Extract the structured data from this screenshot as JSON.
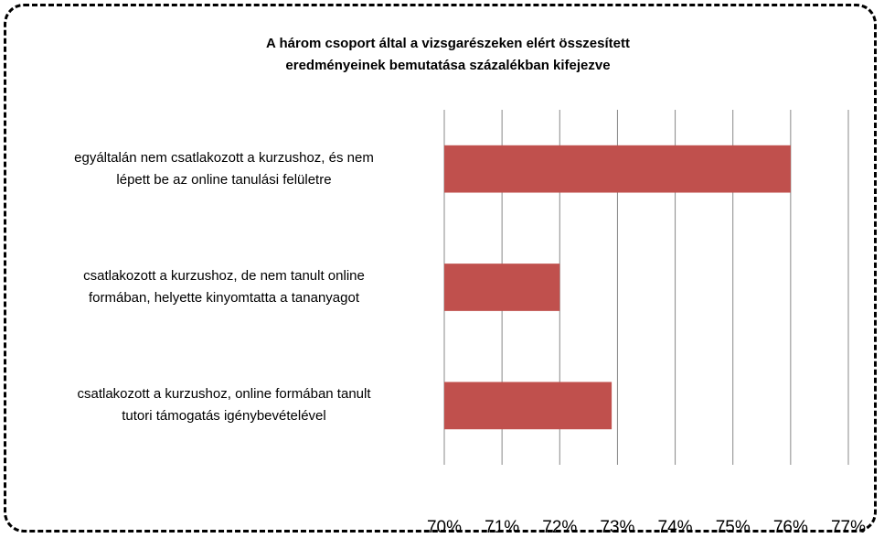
{
  "chart_data": {
    "type": "barh",
    "title": "A három csoport által a vizsgarészeken elért összesített\neredményeinek bemutatása százalékban kifejezve",
    "categories": [
      "egyáltalán nem csatlakozott a kurzushoz, és nem\nlépett be az online tanulási felületre",
      "csatlakozott a kurzushoz, de nem tanult online\nformában, helyette kinyomtatta a tananyagot",
      "csatlakozott a kurzushoz, online formában tanult\ntutori támogatás igénybevételével"
    ],
    "values": [
      76,
      72,
      72.9
    ],
    "color": "#c0504d",
    "xlim": [
      70,
      77
    ],
    "xticks": [
      {
        "value": 70,
        "label": "70%"
      },
      {
        "value": 71,
        "label": "71%"
      },
      {
        "value": 72,
        "label": "72%"
      },
      {
        "value": 73,
        "label": "73%"
      },
      {
        "value": 74,
        "label": "74%"
      },
      {
        "value": 75,
        "label": "75%"
      },
      {
        "value": 76,
        "label": "76%"
      },
      {
        "value": 77,
        "label": "77%"
      }
    ],
    "grid": true
  }
}
